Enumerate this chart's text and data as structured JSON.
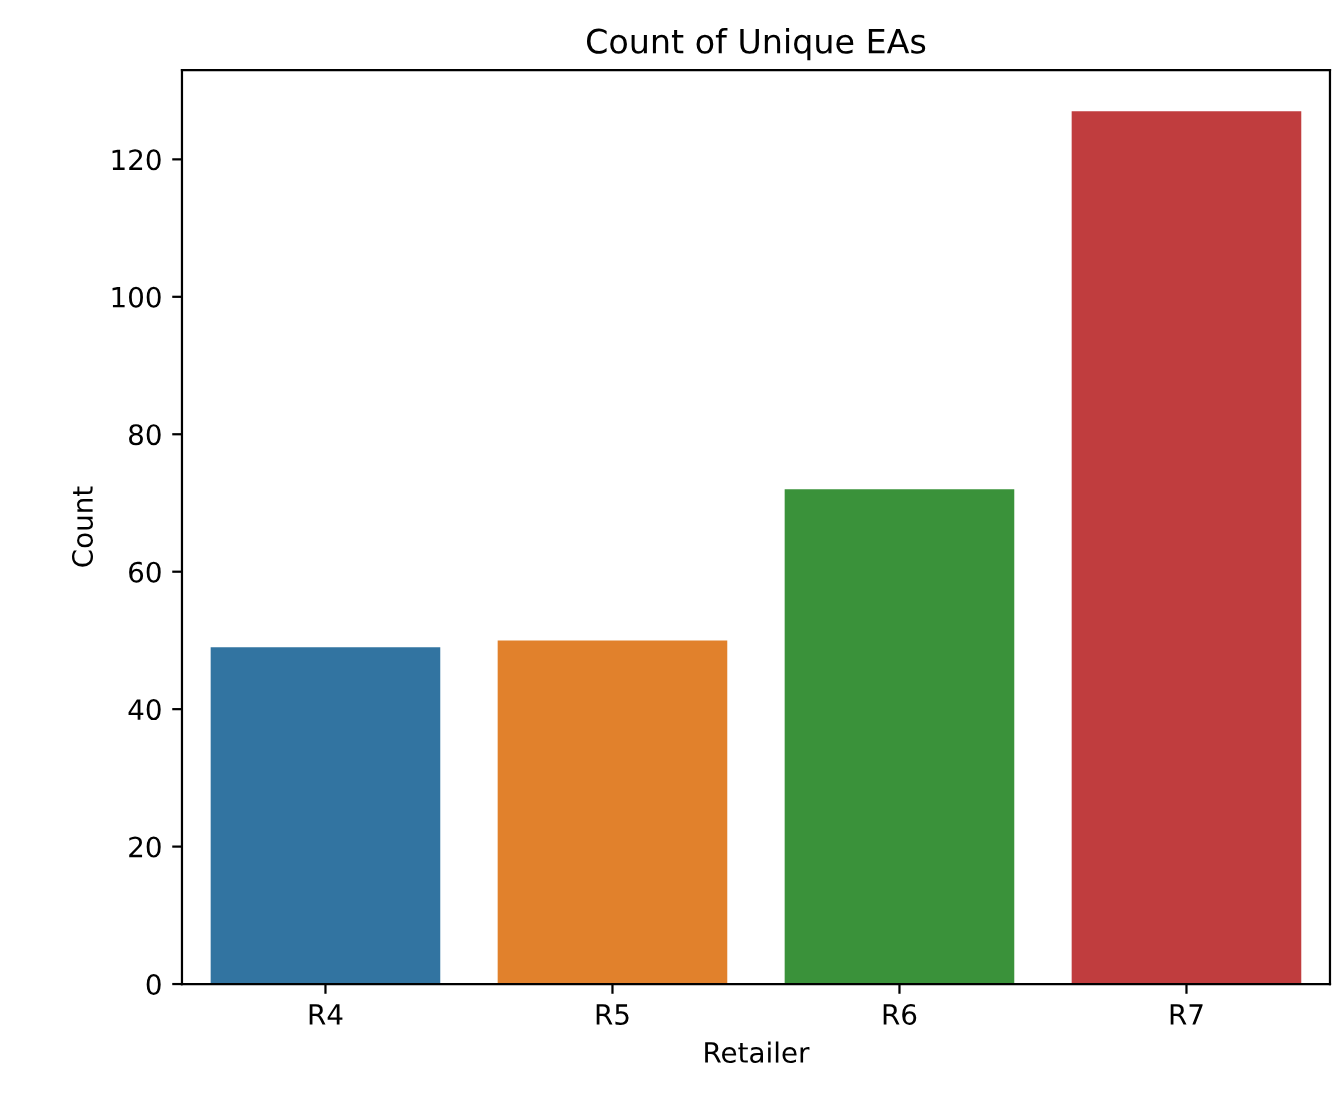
{
  "chart_data": {
    "type": "bar",
    "title": "Count of Unique EAs",
    "xlabel": "Retailer",
    "ylabel": "Count",
    "categories": [
      "R4",
      "R5",
      "R6",
      "R7"
    ],
    "values": [
      49,
      50,
      72,
      127
    ],
    "colors": [
      "#3274a1",
      "#e1812c",
      "#3a923a",
      "#c03d3e"
    ],
    "ylim": [
      0,
      133
    ],
    "yticks": [
      0,
      20,
      40,
      60,
      80,
      100,
      120
    ],
    "grid": false
  }
}
